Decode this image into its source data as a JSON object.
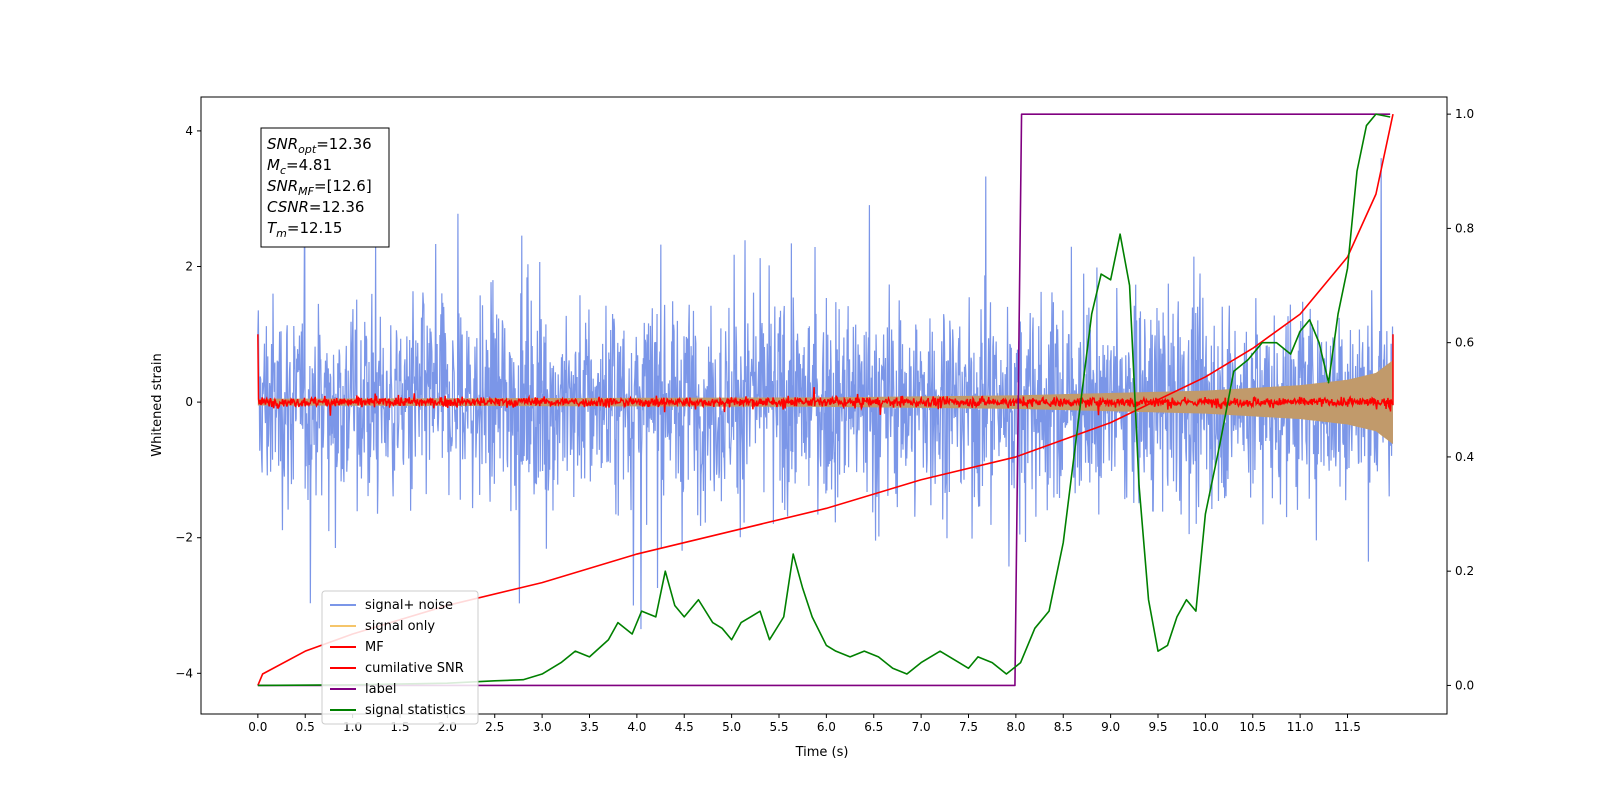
{
  "chart_data": {
    "type": "line",
    "xlabel": "Time (s)",
    "ylabel": "Whitened strain",
    "xlim": [
      -0.6,
      12.55
    ],
    "ylim": [
      -4.6,
      4.5
    ],
    "y2lim": [
      -0.05,
      1.03
    ],
    "xticks": [
      "0.0",
      "0.5",
      "1.0",
      "1.5",
      "2.0",
      "2.5",
      "3.0",
      "3.5",
      "4.0",
      "4.5",
      "5.0",
      "5.5",
      "6.0",
      "6.5",
      "7.0",
      "7.5",
      "8.0",
      "8.5",
      "9.0",
      "9.5",
      "10.0",
      "10.5",
      "11.0",
      "11.5"
    ],
    "yticks": [
      "4",
      "2",
      "0",
      "−2",
      "−4"
    ],
    "y2ticks": [
      "1.0",
      "0.8",
      "0.6",
      "0.4",
      "0.2",
      "0.0"
    ],
    "annotation": {
      "lines": [
        {
          "sym": "SNR",
          "sub": "opt",
          "rest": "=12.36"
        },
        {
          "sym": "M",
          "sub": "c",
          "rest": "=4.81"
        },
        {
          "sym": "SNR",
          "sub": "MF",
          "rest": "=[12.6]"
        },
        {
          "sym": "CSNR",
          "sub": "",
          "rest": "=12.36"
        },
        {
          "sym": "T",
          "sub": "m",
          "rest": "=12.15"
        }
      ]
    },
    "legend": {
      "position": "lower-left",
      "entries": [
        {
          "label": "signal+ noise",
          "color": "#7b96e8"
        },
        {
          "label": "signal only",
          "color": "#f5c56a"
        },
        {
          "label": "MF",
          "color": "#ff0000"
        },
        {
          "label": "cumilative SNR",
          "color": "#ff0000"
        },
        {
          "label": "label",
          "color": "#800080"
        },
        {
          "label": "signal statistics",
          "color": "#008000"
        }
      ]
    },
    "series": [
      {
        "name": "signal+ noise",
        "axis": "left",
        "color": "#7b96e8",
        "description_range": [
          -4.1,
          4.0
        ]
      },
      {
        "name": "signal only",
        "axis": "left",
        "color": "#c19a6b",
        "envelope": {
          "t": [
            0,
            6,
            8,
            10,
            11,
            11.5,
            11.8,
            11.98
          ],
          "amp": [
            0.05,
            0.07,
            0.1,
            0.17,
            0.25,
            0.33,
            0.43,
            0.62
          ]
        }
      },
      {
        "name": "MF",
        "axis": "left",
        "color": "#ff0000",
        "start_value": 1.0,
        "end_value": 1.0
      },
      {
        "name": "cumilative SNR",
        "axis": "right",
        "color": "#ff0000",
        "x": [
          0,
          0.05,
          0.5,
          1,
          2,
          3,
          4,
          5,
          6,
          7,
          8,
          9,
          10,
          10.5,
          11,
          11.5,
          11.8,
          11.98
        ],
        "y": [
          0.0,
          0.02,
          0.06,
          0.09,
          0.14,
          0.18,
          0.23,
          0.27,
          0.31,
          0.36,
          0.4,
          0.46,
          0.54,
          0.59,
          0.65,
          0.75,
          0.86,
          1.0
        ]
      },
      {
        "name": "label",
        "axis": "right",
        "color": "#800080",
        "x": [
          0,
          7.99,
          8.06,
          11.95
        ],
        "y": [
          0,
          0,
          1,
          1
        ]
      },
      {
        "name": "signal statistics",
        "axis": "right",
        "color": "#008000",
        "x": [
          0,
          1,
          2,
          2.5,
          2.8,
          3.0,
          3.2,
          3.35,
          3.5,
          3.7,
          3.8,
          3.95,
          4.05,
          4.2,
          4.3,
          4.4,
          4.5,
          4.65,
          4.8,
          4.9,
          5.0,
          5.1,
          5.2,
          5.3,
          5.4,
          5.55,
          5.65,
          5.75,
          5.85,
          6.0,
          6.1,
          6.25,
          6.4,
          6.55,
          6.7,
          6.85,
          7.0,
          7.2,
          7.4,
          7.5,
          7.6,
          7.75,
          7.9,
          8.05,
          8.2,
          8.35,
          8.5,
          8.65,
          8.8,
          8.9,
          9.0,
          9.1,
          9.2,
          9.3,
          9.4,
          9.5,
          9.6,
          9.7,
          9.8,
          9.9,
          10.0,
          10.15,
          10.3,
          10.45,
          10.6,
          10.75,
          10.9,
          11.0,
          11.1,
          11.2,
          11.3,
          11.4,
          11.5,
          11.6,
          11.7,
          11.8,
          11.95
        ],
        "y": [
          0.0,
          0.001,
          0.004,
          0.008,
          0.01,
          0.02,
          0.04,
          0.06,
          0.05,
          0.08,
          0.11,
          0.09,
          0.13,
          0.12,
          0.2,
          0.14,
          0.12,
          0.15,
          0.11,
          0.1,
          0.08,
          0.11,
          0.12,
          0.13,
          0.08,
          0.12,
          0.23,
          0.17,
          0.12,
          0.07,
          0.06,
          0.05,
          0.06,
          0.05,
          0.03,
          0.02,
          0.04,
          0.06,
          0.04,
          0.03,
          0.05,
          0.04,
          0.02,
          0.04,
          0.1,
          0.13,
          0.25,
          0.45,
          0.65,
          0.72,
          0.71,
          0.79,
          0.7,
          0.35,
          0.15,
          0.06,
          0.07,
          0.12,
          0.15,
          0.13,
          0.3,
          0.42,
          0.55,
          0.57,
          0.6,
          0.6,
          0.58,
          0.62,
          0.64,
          0.6,
          0.53,
          0.65,
          0.73,
          0.9,
          0.98,
          1.0,
          0.995
        ]
      }
    ]
  }
}
